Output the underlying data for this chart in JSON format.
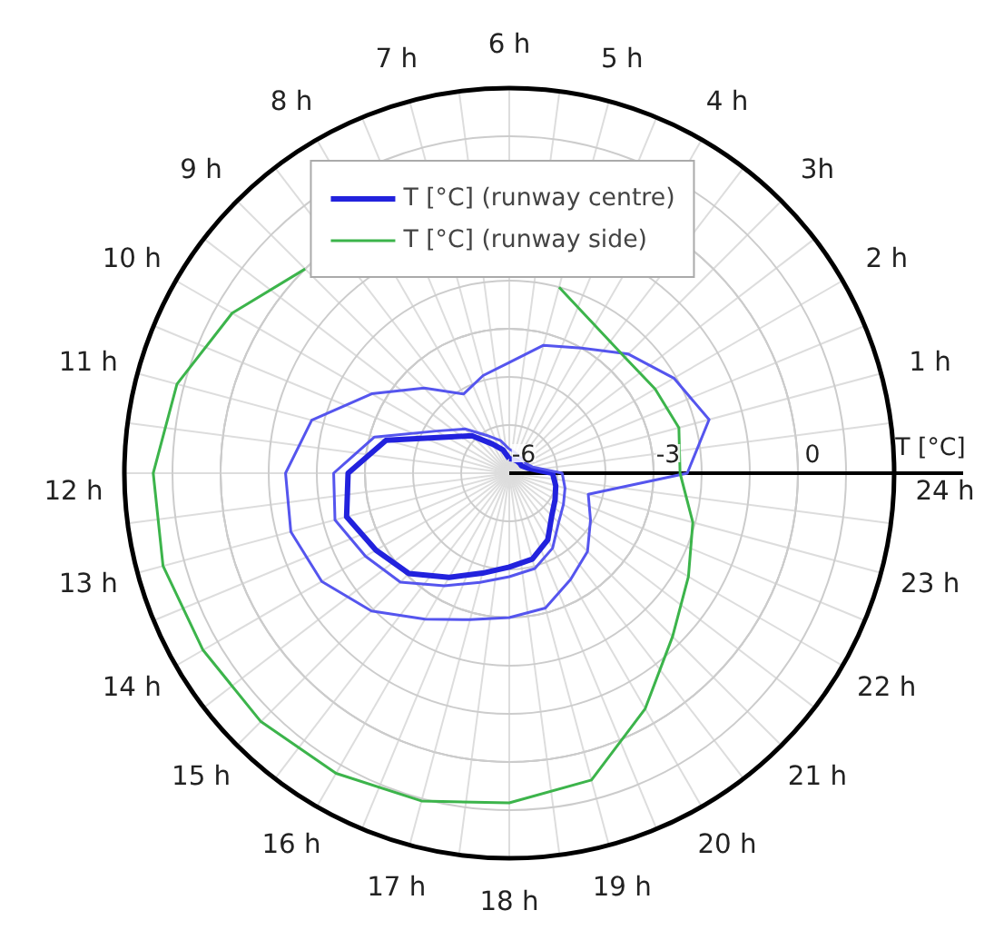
{
  "chart_data": {
    "type": "radar",
    "categories": [
      "6 h",
      "5 h",
      "4 h",
      "3h",
      "2 h",
      "1 h",
      "24 h",
      "23 h",
      "22 h",
      "21 h",
      "20 h",
      "19 h",
      "18 h",
      "17 h",
      "16 h",
      "15 h",
      "14 h",
      "13 h",
      "12 h",
      "11 h",
      "10 h",
      "9 h",
      "8 h",
      "7 h"
    ],
    "ylabel": "T [°C]",
    "ylim": [
      -6,
      2
    ],
    "yticks": [
      -6,
      -3,
      0
    ],
    "grid": true,
    "legend": "top",
    "series": [
      {
        "name": "T [°C] (runway centre)",
        "color": "#2222dd",
        "values": [
          -5.7,
          -5.7,
          -5.7,
          -5.7,
          -5.7,
          -5.6,
          -5.1,
          -5.0,
          -4.9,
          -4.75,
          -4.4,
          -4.15,
          -4.05,
          -3.85,
          -3.5,
          -3.05,
          -2.8,
          -2.5,
          -2.65,
          -3.35,
          -4.5,
          -4.9,
          -5.3,
          -5.5
        ]
      },
      {
        "color": "#5555ee",
        "values": [
          -5.5,
          -5.55,
          -5.6,
          -5.6,
          -5.6,
          -5.5,
          -4.9,
          -4.8,
          -4.7,
          -4.55,
          -4.2,
          -3.95,
          -3.85,
          -3.65,
          -3.3,
          -2.8,
          -2.55,
          -2.25,
          -2.35,
          -3.1,
          -4.25,
          -4.7,
          -5.1,
          -5.3
        ]
      },
      {
        "color": "#5555ee",
        "values": [
          -3.7,
          -3.25,
          -3.0,
          -2.5,
          -2.05,
          -1.7,
          -2.3,
          -4.3,
          -4.05,
          -3.7,
          -3.45,
          -3.1,
          -3.0,
          -2.85,
          -2.5,
          -1.95,
          -1.5,
          -1.3,
          -1.35,
          -1.75,
          -2.7,
          -3.5,
          -4.1,
          -3.9
        ]
      },
      {
        "name": "T [°C] (runway side)",
        "color": "#3cb44b",
        "values": [
          null,
          -2.0,
          -2.45,
          -2.6,
          -2.5,
          -2.35,
          -2.45,
          -2.05,
          -1.7,
          -1.2,
          -0.35,
          0.6,
          0.85,
          1.05,
          1.2,
          1.3,
          1.35,
          1.45,
          1.4,
          1.15,
          0.65,
          0.0,
          null,
          null
        ]
      }
    ]
  }
}
